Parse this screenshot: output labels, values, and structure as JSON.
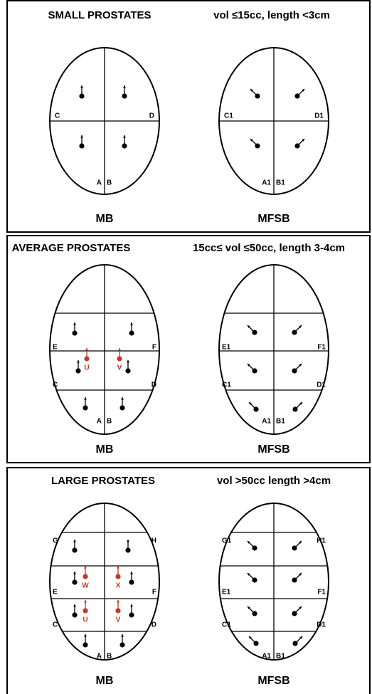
{
  "panels": [
    {
      "title": "SMALL PROSTATES",
      "criteria": "vol ≤15cc, length <3cm",
      "left": {
        "caption": "MB",
        "labels": [
          "C",
          "D",
          "A",
          "B"
        ],
        "markers": []
      },
      "right": {
        "caption": "MFSB",
        "labels": [
          "C1",
          "D1",
          "A1",
          "B1"
        ]
      }
    },
    {
      "title": "AVERAGE PROSTATES",
      "criteria": "15cc≤ vol ≤50cc, length 3-4cm",
      "left": {
        "caption": "MB",
        "labels": [
          "E",
          "F",
          "C",
          "D",
          "A",
          "B"
        ],
        "markers": [
          "U",
          "V"
        ]
      },
      "right": {
        "caption": "MFSB",
        "labels": [
          "E1",
          "F1",
          "C1",
          "D1",
          "A1",
          "B1"
        ]
      }
    },
    {
      "title": "LARGE PROSTATES",
      "criteria": "vol >50cc   length >4cm",
      "left": {
        "caption": "MB",
        "labels": [
          "G",
          "H",
          "E",
          "F",
          "C",
          "D",
          "A",
          "B"
        ],
        "markers": [
          "W",
          "X",
          "U",
          "V"
        ]
      },
      "right": {
        "caption": "MFSB",
        "labels": [
          "G1",
          "H1",
          "E1",
          "F1",
          "C1",
          "D1",
          "A1",
          "B1"
        ]
      }
    }
  ]
}
